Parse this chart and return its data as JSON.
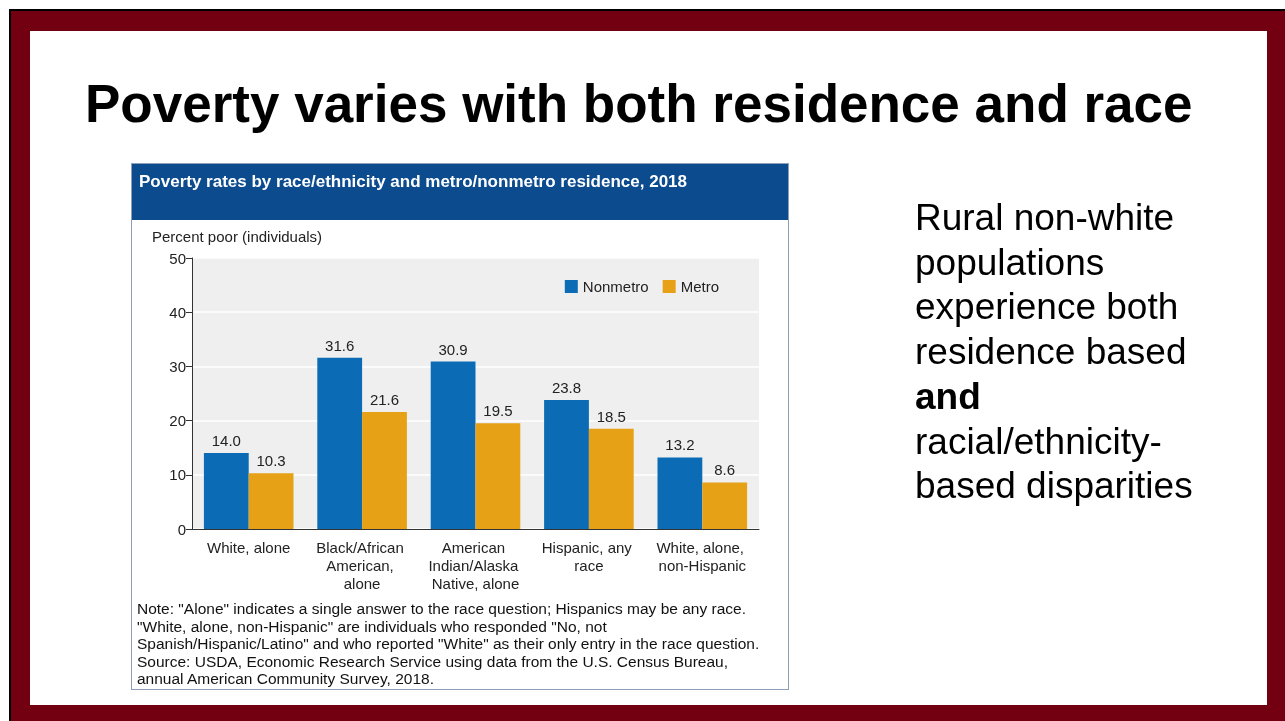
{
  "chart_data": {
    "type": "bar",
    "title": "Poverty varies with both residence and race",
    "subtitle": "Poverty rates by race/ethnicity and metro/nonmetro residence, 2018",
    "ylabel": "Percent poor (individuals)",
    "categories": [
      "White, alone",
      "Black/African American, alone",
      "American Indian/Alaska Native, alone",
      "Hispanic, any race",
      "White, alone, non-Hispanic"
    ],
    "series": [
      {
        "name": "Nonmetro",
        "color": "#0b6cb5",
        "values": [
          14.0,
          31.6,
          30.9,
          23.8,
          13.2
        ],
        "value_labels": [
          "14.0",
          "31.6",
          "30.9",
          "23.8",
          "13.2"
        ]
      },
      {
        "name": "Metro",
        "color": "#e6a117",
        "values": [
          10.3,
          21.6,
          19.5,
          18.5,
          8.6
        ],
        "value_labels": [
          "10.3",
          "21.6",
          "19.5",
          "18.5",
          "8.6"
        ]
      }
    ],
    "ylim": [
      0,
      50
    ],
    "yticks": [
      0,
      10,
      20,
      30,
      40,
      50
    ],
    "grid": "y",
    "legend": "top right",
    "annotations": [
      "Rural non-white populations experience both residence based",
      "and",
      "racial/ethnicity-based disparities",
      "Note: \"Alone\" indicates a single answer to the race question; Hispanics may be any race. \"White, alone, non-Hispanic\" are individuals who responded \"No, not Spanish/Hispanic/Latino\" and who reported \"White\" as their only entry in the race question.",
      "Source: USDA, Economic Research Service using data from the U.S. Census Bureau, annual American Community Survey, 2018."
    ]
  }
}
